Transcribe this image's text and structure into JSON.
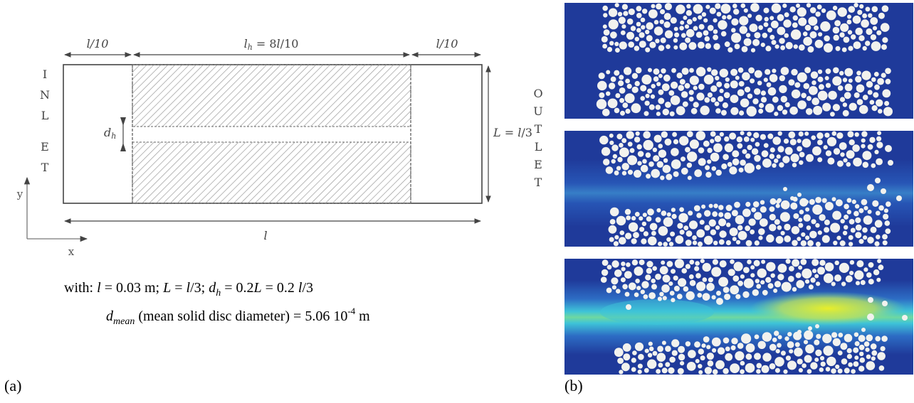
{
  "panel_a": {
    "label": "(a)",
    "dims": {
      "inlet_width": "l/10",
      "heap_width": "l_h = 8l/10",
      "outlet_width": "l/10",
      "height": "L = l/3",
      "channel_height": "d_h",
      "total_length": "l"
    },
    "inlet_letters": [
      "I",
      "N",
      "L",
      "E",
      "T"
    ],
    "outlet_letters": [
      "O",
      "U",
      "T",
      "L",
      "E",
      "T"
    ],
    "axes": {
      "y": "y",
      "x": "x"
    },
    "caption": {
      "line1": "with: l = 0.03 m; L = l/3; d_h = 0.2L = 0.2 l/3",
      "line2": "d_mean (mean solid disc diameter) = 5.06 10^-4 m"
    },
    "colors": {
      "hatch": "#9a9a9a",
      "outline": "#444444"
    }
  },
  "panel_b": {
    "label": "(b)",
    "snapshots": 3,
    "colors": {
      "background": "#1f3a9a",
      "disc": "#f2f2ee",
      "jet_mid": "#3ec3d8",
      "jet_high": "#e8ee2a"
    }
  }
}
